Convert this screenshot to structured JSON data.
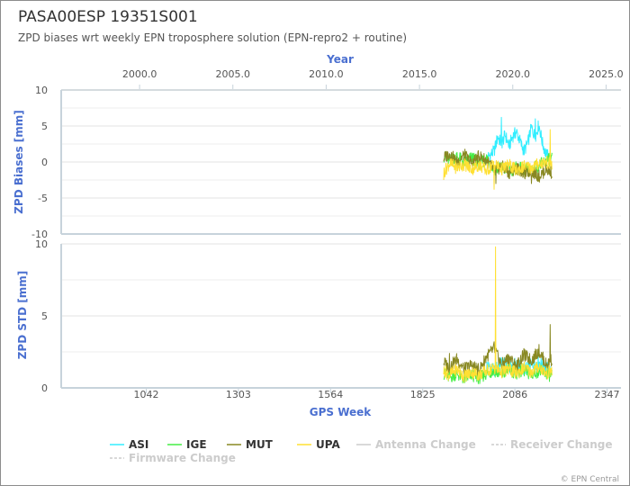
{
  "header": {
    "title": "PASA00ESP 19351S001",
    "subtitle": "ZPD biases wrt weekly EPN troposphere solution (EPN-repro2 + routine)"
  },
  "credit": "© EPN Central",
  "chart_data": [
    {
      "type": "line",
      "name": "bias-panel",
      "ylabel": "ZPD Biases [mm]",
      "ylim": [
        -10,
        10
      ],
      "yticks": [
        "10",
        "5",
        "0",
        "-5",
        "-10"
      ],
      "top_axis": {
        "label": "Year",
        "range": [
          1995.8,
          2025.8
        ],
        "ticks": [
          "2000.0",
          "2005.0",
          "2010.0",
          "2015.0",
          "2020.0",
          "2025.0"
        ]
      },
      "series": [
        {
          "name": "ASI",
          "color": "#33eeff",
          "points": [
            [
              2018.6,
              0.5
            ],
            [
              2019.0,
              1.5
            ],
            [
              2019.2,
              3.5
            ],
            [
              2019.4,
              2.5
            ],
            [
              2019.6,
              3.8
            ],
            [
              2019.8,
              2.2
            ],
            [
              2020.0,
              3.6
            ],
            [
              2020.2,
              4.2
            ],
            [
              2020.4,
              2.8
            ],
            [
              2020.6,
              1.5
            ],
            [
              2020.8,
              2.6
            ],
            [
              2021.0,
              4.8
            ],
            [
              2021.2,
              3.5
            ],
            [
              2021.4,
              5.2
            ],
            [
              2021.6,
              2.5
            ],
            [
              2021.8,
              1.0
            ],
            [
              2022.0,
              0.6
            ]
          ],
          "spikes": [
            [
              2019.4,
              6.2
            ],
            [
              2021.2,
              6.0
            ]
          ]
        },
        {
          "name": "IGE",
          "color": "#44ee44",
          "points": [
            [
              2016.3,
              0.8
            ],
            [
              2016.6,
              0.2
            ],
            [
              2017.0,
              0.8
            ],
            [
              2017.4,
              0.0
            ],
            [
              2017.8,
              0.6
            ],
            [
              2018.2,
              -0.2
            ],
            [
              2018.6,
              0.5
            ],
            [
              2019.0,
              -1.0
            ],
            [
              2019.4,
              -0.8
            ],
            [
              2019.8,
              -1.2
            ],
            [
              2020.2,
              -0.8
            ],
            [
              2020.6,
              -1.0
            ],
            [
              2021.0,
              -0.9
            ],
            [
              2021.4,
              -0.5
            ],
            [
              2021.8,
              0.2
            ],
            [
              2022.1,
              0.4
            ]
          ],
          "spikes": []
        },
        {
          "name": "MUT",
          "color": "#888822",
          "points": [
            [
              2016.3,
              0.5
            ],
            [
              2016.6,
              1.2
            ],
            [
              2017.0,
              0.0
            ],
            [
              2017.4,
              1.0
            ],
            [
              2017.8,
              -0.2
            ],
            [
              2018.2,
              0.8
            ],
            [
              2018.6,
              0.2
            ],
            [
              2019.0,
              -1.2
            ],
            [
              2019.4,
              -0.6
            ],
            [
              2019.8,
              -1.5
            ],
            [
              2020.2,
              -0.8
            ],
            [
              2020.6,
              -1.6
            ],
            [
              2021.0,
              -1.2
            ],
            [
              2021.4,
              -2.0
            ],
            [
              2021.8,
              -1.0
            ],
            [
              2022.1,
              -1.5
            ]
          ],
          "spikes": [
            [
              2019.1,
              -3.0
            ],
            [
              2021.0,
              -3.0
            ],
            [
              2022.1,
              -2.2
            ]
          ]
        },
        {
          "name": "UPA",
          "color": "#ffe033",
          "points": [
            [
              2016.3,
              -1.5
            ],
            [
              2016.6,
              -0.2
            ],
            [
              2017.0,
              -0.8
            ],
            [
              2017.4,
              -0.3
            ],
            [
              2017.8,
              -1.0
            ],
            [
              2018.2,
              -0.4
            ],
            [
              2018.6,
              -1.2
            ],
            [
              2019.0,
              -0.2
            ],
            [
              2019.4,
              -1.0
            ],
            [
              2019.8,
              -0.4
            ],
            [
              2020.2,
              -1.2
            ],
            [
              2020.6,
              -0.6
            ],
            [
              2021.0,
              -0.8
            ],
            [
              2021.4,
              -0.2
            ],
            [
              2021.8,
              0.0
            ],
            [
              2022.1,
              -0.4
            ]
          ],
          "spikes": [
            [
              2016.3,
              -2.5
            ],
            [
              2019.0,
              -3.8
            ],
            [
              2022.0,
              4.5
            ]
          ]
        }
      ]
    },
    {
      "type": "line",
      "name": "std-panel",
      "ylabel": "ZPD STD [mm]",
      "ylim": [
        0,
        10
      ],
      "yticks": [
        "10",
        "5",
        "0"
      ],
      "bottom_axis": {
        "label": "GPS Week",
        "ticks": [
          "1042",
          "1303",
          "1564",
          "1825",
          "2086",
          "2347"
        ]
      },
      "series": [
        {
          "name": "ASI",
          "color": "#33eeff",
          "points": [
            [
              2018.6,
              1.6
            ],
            [
              2019.0,
              1.2
            ],
            [
              2019.4,
              1.8
            ],
            [
              2019.8,
              1.4
            ],
            [
              2020.2,
              1.7
            ],
            [
              2020.6,
              1.3
            ],
            [
              2021.0,
              1.6
            ],
            [
              2021.4,
              1.8
            ],
            [
              2021.8,
              1.4
            ],
            [
              2022.0,
              1.2
            ]
          ],
          "spikes": []
        },
        {
          "name": "IGE",
          "color": "#44ee44",
          "points": [
            [
              2016.3,
              1.0
            ],
            [
              2016.6,
              0.7
            ],
            [
              2017.0,
              1.0
            ],
            [
              2017.4,
              0.6
            ],
            [
              2017.8,
              0.9
            ],
            [
              2018.2,
              0.7
            ],
            [
              2018.6,
              1.0
            ],
            [
              2019.0,
              1.2
            ],
            [
              2019.4,
              0.9
            ],
            [
              2019.8,
              1.3
            ],
            [
              2020.2,
              1.0
            ],
            [
              2020.6,
              1.2
            ],
            [
              2021.0,
              0.9
            ],
            [
              2021.4,
              1.2
            ],
            [
              2021.8,
              1.0
            ],
            [
              2022.1,
              0.8
            ]
          ],
          "spikes": []
        },
        {
          "name": "MUT",
          "color": "#888822",
          "points": [
            [
              2016.3,
              1.8
            ],
            [
              2016.6,
              1.4
            ],
            [
              2017.0,
              2.0
            ],
            [
              2017.4,
              1.3
            ],
            [
              2017.8,
              1.6
            ],
            [
              2018.2,
              1.2
            ],
            [
              2018.6,
              2.2
            ],
            [
              2019.0,
              2.7
            ],
            [
              2019.4,
              1.6
            ],
            [
              2019.8,
              2.1
            ],
            [
              2020.2,
              1.5
            ],
            [
              2020.6,
              2.3
            ],
            [
              2021.0,
              1.9
            ],
            [
              2021.4,
              2.6
            ],
            [
              2021.8,
              1.6
            ],
            [
              2022.1,
              2.0
            ]
          ],
          "spikes": [
            [
              2016.6,
              2.4
            ],
            [
              2019.0,
              3.2
            ],
            [
              2022.0,
              4.4
            ]
          ]
        },
        {
          "name": "UPA",
          "color": "#ffe033",
          "points": [
            [
              2016.3,
              1.2
            ],
            [
              2016.6,
              0.9
            ],
            [
              2017.0,
              1.3
            ],
            [
              2017.4,
              0.8
            ],
            [
              2017.8,
              1.1
            ],
            [
              2018.2,
              0.9
            ],
            [
              2018.6,
              1.2
            ],
            [
              2019.0,
              1.4
            ],
            [
              2019.4,
              1.1
            ],
            [
              2019.8,
              1.3
            ],
            [
              2020.2,
              1.0
            ],
            [
              2020.6,
              1.4
            ],
            [
              2021.0,
              1.1
            ],
            [
              2021.4,
              1.5
            ],
            [
              2021.8,
              1.0
            ],
            [
              2022.1,
              1.2
            ]
          ],
          "spikes": [
            [
              2019.08,
              9.8
            ]
          ]
        }
      ]
    }
  ],
  "legend": {
    "items": [
      {
        "label": "ASI",
        "color": "#33eeff",
        "style": "solid",
        "active": true
      },
      {
        "label": "IGE",
        "color": "#44ee44",
        "style": "solid",
        "active": true
      },
      {
        "label": "MUT",
        "color": "#888822",
        "style": "solid",
        "active": true
      },
      {
        "label": "UPA",
        "color": "#ffe033",
        "style": "solid",
        "active": true
      },
      {
        "label": "Antenna Change",
        "color": "#cccccc",
        "style": "solid",
        "active": false
      },
      {
        "label": "Receiver Change",
        "color": "#cccccc",
        "style": "dashed",
        "active": false
      },
      {
        "label": "Firmware Change",
        "color": "#cccccc",
        "style": "dashed",
        "active": false
      }
    ]
  }
}
